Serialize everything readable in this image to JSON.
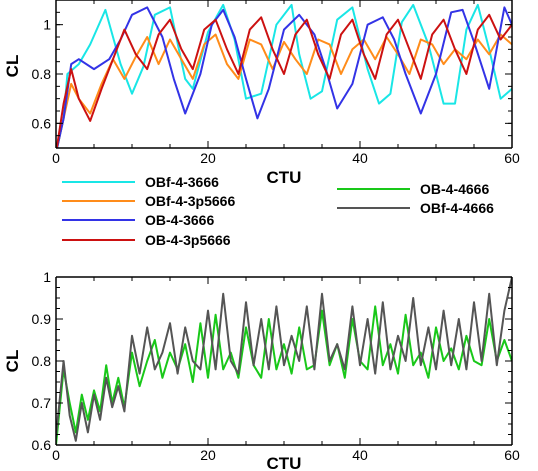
{
  "chart_data": [
    {
      "type": "line",
      "xlabel": "CTU",
      "ylabel": "CL",
      "xlim": [
        0,
        60
      ],
      "ylim": [
        0.5,
        1.1
      ],
      "xticks": [
        0,
        20,
        40,
        60
      ],
      "yticks": [
        0.6,
        0.8,
        1.0
      ],
      "ytick_labels": [
        "0.6",
        "0.8",
        "1"
      ],
      "grid": false,
      "legend": "below-plot, two columns",
      "series": [
        {
          "name": "OBf-4-3666",
          "color": "#19e6e6",
          "x": [
            0,
            1,
            1.5,
            3,
            4.5,
            6.5,
            8.5,
            10,
            11.5,
            13,
            15,
            17,
            18,
            20,
            22,
            23.5,
            25,
            27,
            29,
            31,
            32,
            33.5,
            35,
            37,
            39,
            41,
            42.5,
            44,
            45.5,
            47,
            49,
            51,
            52.5,
            54,
            55.5,
            57,
            58.5,
            60
          ],
          "y": [
            0.48,
            0.62,
            0.8,
            0.84,
            0.92,
            1.06,
            0.84,
            0.72,
            0.83,
            1.04,
            1.07,
            0.78,
            0.74,
            0.97,
            1.08,
            0.94,
            0.7,
            0.72,
            1.0,
            1.08,
            0.88,
            0.7,
            0.73,
            1.02,
            1.07,
            0.82,
            0.68,
            0.72,
            1.01,
            1.08,
            0.92,
            0.68,
            0.68,
            0.98,
            1.08,
            0.9,
            0.7,
            0.74
          ]
        },
        {
          "name": "OBf-4-3p5666",
          "color": "#ff8c1a",
          "x": [
            0,
            1,
            2,
            3,
            4.5,
            6,
            7.5,
            9,
            10.5,
            12,
            13.5,
            15,
            16.5,
            18,
            19.5,
            21,
            22.5,
            24,
            25.5,
            27,
            28.5,
            30,
            31.5,
            33,
            34.5,
            36,
            37.5,
            39,
            40.5,
            42,
            43.5,
            45,
            46.5,
            48,
            49.5,
            51,
            52.5,
            54,
            55.5,
            57,
            58.5,
            60
          ],
          "y": [
            0.48,
            0.62,
            0.76,
            0.7,
            0.64,
            0.76,
            0.86,
            0.78,
            0.87,
            0.95,
            0.84,
            0.94,
            0.86,
            0.78,
            0.92,
            0.96,
            0.84,
            0.78,
            0.94,
            0.92,
            0.82,
            0.93,
            0.86,
            0.8,
            0.94,
            0.92,
            0.8,
            0.9,
            0.94,
            0.86,
            0.95,
            0.88,
            0.8,
            0.94,
            0.92,
            0.84,
            0.9,
            0.86,
            0.94,
            0.88,
            0.96,
            0.92
          ]
        },
        {
          "name": "OB-4-3666",
          "color": "#3333e6",
          "x": [
            0,
            1,
            2,
            3,
            5,
            7,
            8.5,
            10,
            12,
            14,
            15.5,
            17,
            19,
            20.5,
            22,
            23.5,
            25,
            26.5,
            28,
            30,
            32,
            34,
            35.5,
            37,
            39,
            41,
            43,
            44.5,
            46,
            48,
            50,
            52,
            53.5,
            55,
            57,
            59,
            60
          ],
          "y": [
            0.48,
            0.62,
            0.84,
            0.86,
            0.82,
            0.86,
            0.94,
            1.04,
            1.07,
            0.95,
            0.78,
            0.64,
            0.8,
            1.0,
            1.06,
            0.95,
            0.78,
            0.62,
            0.74,
            0.98,
            1.04,
            0.96,
            0.82,
            0.66,
            0.76,
            1.0,
            1.03,
            0.94,
            0.8,
            0.64,
            0.8,
            1.05,
            1.06,
            0.93,
            0.74,
            1.07,
            1.0
          ]
        },
        {
          "name": "OB-4-3p5666",
          "color": "#cc1111",
          "x": [
            0,
            1,
            2,
            3,
            4.5,
            6,
            7.5,
            9,
            10.5,
            12,
            13.5,
            15,
            16.5,
            18,
            19.5,
            21,
            22.5,
            24,
            25.5,
            27,
            28.5,
            30,
            31.5,
            33,
            34.5,
            36,
            37.5,
            39,
            40.5,
            42,
            43.5,
            45,
            46.5,
            48,
            49.5,
            51,
            52.5,
            54,
            55.5,
            57,
            58.5,
            60
          ],
          "y": [
            0.48,
            0.68,
            0.82,
            0.7,
            0.61,
            0.74,
            0.86,
            0.98,
            0.88,
            0.82,
            0.96,
            1.02,
            0.9,
            0.82,
            0.98,
            1.02,
            0.9,
            0.8,
            0.98,
            1.03,
            0.9,
            0.8,
            0.96,
            1.02,
            0.88,
            0.78,
            0.96,
            1.02,
            0.88,
            0.78,
            0.96,
            1.02,
            0.9,
            0.78,
            0.96,
            1.02,
            0.9,
            0.8,
            0.98,
            1.04,
            0.94,
            1.0
          ]
        }
      ]
    },
    {
      "type": "line",
      "xlabel": "CTU",
      "ylabel": "CL",
      "xlim": [
        0,
        60
      ],
      "ylim": [
        0.6,
        1.0
      ],
      "xticks": [
        0,
        20,
        40,
        60
      ],
      "yticks": [
        0.6,
        0.7,
        0.8,
        0.9,
        1.0
      ],
      "ytick_labels": [
        "0.6",
        "0.7",
        "0.8",
        "0.9",
        "1"
      ],
      "grid": false,
      "series": [
        {
          "name": "OB-4-4666",
          "color": "#19c819",
          "x": [
            0,
            1,
            1.8,
            2.6,
            3.4,
            4.2,
            5,
            5.8,
            6.6,
            7.4,
            8.2,
            9,
            10,
            11,
            12,
            13,
            14,
            15,
            16,
            17,
            18,
            19,
            20,
            21,
            22,
            23,
            24,
            25,
            26,
            27,
            28,
            29,
            30,
            31,
            32,
            33,
            34,
            35,
            36,
            37,
            38,
            39,
            40,
            41,
            42,
            43,
            44,
            45,
            46,
            47,
            48,
            49,
            50,
            51,
            52,
            53,
            54,
            55,
            56,
            57,
            58,
            59,
            60
          ],
          "y": [
            0.6,
            0.78,
            0.7,
            0.63,
            0.72,
            0.66,
            0.73,
            0.68,
            0.79,
            0.7,
            0.76,
            0.69,
            0.82,
            0.74,
            0.8,
            0.85,
            0.76,
            0.82,
            0.78,
            0.84,
            0.75,
            0.89,
            0.76,
            0.91,
            0.78,
            0.82,
            0.76,
            0.88,
            0.79,
            0.76,
            0.9,
            0.78,
            0.84,
            0.77,
            0.88,
            0.78,
            0.79,
            0.92,
            0.79,
            0.84,
            0.76,
            0.9,
            0.8,
            0.78,
            0.93,
            0.79,
            0.84,
            0.77,
            0.91,
            0.79,
            0.82,
            0.76,
            0.88,
            0.8,
            0.83,
            0.78,
            0.86,
            0.8,
            0.79,
            0.9,
            0.8,
            0.85,
            0.8
          ]
        },
        {
          "name": "OBf-4-4666",
          "color": "#555555",
          "x": [
            0,
            1,
            1.8,
            2.6,
            3.4,
            4.2,
            5,
            5.8,
            6.6,
            7.4,
            8.2,
            9,
            10,
            11,
            12,
            13,
            14,
            15,
            16,
            17,
            18,
            19,
            20,
            21,
            22,
            23,
            24,
            25,
            26,
            27,
            28,
            29,
            30,
            31,
            32,
            33,
            34,
            35,
            36,
            37,
            38,
            39,
            40,
            41,
            42,
            43,
            44,
            45,
            46,
            47,
            48,
            49,
            50,
            51,
            52,
            53,
            54,
            55,
            56,
            57,
            58,
            59,
            60
          ],
          "y": [
            0.62,
            0.8,
            0.67,
            0.61,
            0.7,
            0.63,
            0.72,
            0.66,
            0.76,
            0.69,
            0.74,
            0.68,
            0.86,
            0.77,
            0.88,
            0.78,
            0.82,
            0.89,
            0.77,
            0.88,
            0.8,
            0.78,
            0.92,
            0.78,
            0.96,
            0.8,
            0.77,
            0.94,
            0.79,
            0.9,
            0.78,
            0.93,
            0.79,
            0.86,
            0.8,
            0.93,
            0.78,
            0.96,
            0.8,
            0.84,
            0.78,
            0.93,
            0.79,
            0.9,
            0.77,
            0.94,
            0.78,
            0.86,
            0.8,
            0.95,
            0.79,
            0.88,
            0.78,
            0.92,
            0.79,
            0.9,
            0.78,
            0.94,
            0.8,
            0.96,
            0.79,
            0.92,
            1.0
          ]
        }
      ]
    }
  ]
}
